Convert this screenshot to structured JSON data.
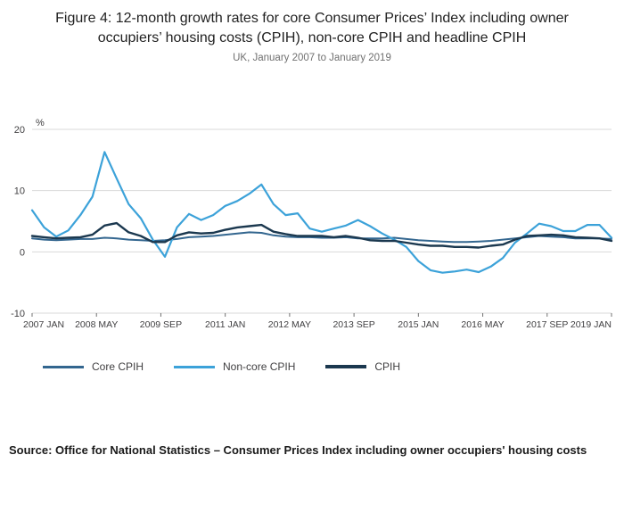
{
  "figure": {
    "title": "Figure 4: 12-month growth rates for core Consumer Prices’ Index including owner occupiers’ housing costs (CPIH), non-core CPIH and headline CPIH",
    "subtitle": "UK, January 2007 to January 2019",
    "source": "Source: Office for National Statistics – Consumer Prices Index including owner occupiers' housing costs"
  },
  "chart_data": {
    "type": "line",
    "title": "Figure 4: 12-month growth rates for core Consumer Prices’ Index including owner occupiers’ housing costs (CPIH), non-core CPIH and headline CPIH",
    "subtitle": "UK, January 2007 to January 2019",
    "xlabel": "",
    "ylabel": "%",
    "ylim": [
      -10,
      20
    ],
    "yticks": [
      20,
      10,
      0,
      -10
    ],
    "grid": "horizontal",
    "legend_position": "bottom",
    "total_months": 144,
    "x_tick_months": [
      0,
      16,
      32,
      48,
      64,
      80,
      96,
      112,
      128,
      144
    ],
    "x_tick_labels": [
      "2007 JAN",
      "2008 MAY",
      "2009 SEP",
      "2011 JAN",
      "2012 MAY",
      "2013 SEP",
      "2015 JAN",
      "2016 MAY",
      "2017 SEP",
      "2019 JAN"
    ],
    "x": [
      "2007 JAN",
      "2007 APR",
      "2007 JUL",
      "2007 OCT",
      "2008 JAN",
      "2008 APR",
      "2008 JUL",
      "2008 OCT",
      "2009 JAN",
      "2009 APR",
      "2009 JUL",
      "2009 OCT",
      "2010 JAN",
      "2010 APR",
      "2010 JUL",
      "2010 OCT",
      "2011 JAN",
      "2011 APR",
      "2011 JUL",
      "2011 OCT",
      "2012 JAN",
      "2012 APR",
      "2012 JUL",
      "2012 OCT",
      "2013 JAN",
      "2013 APR",
      "2013 JUL",
      "2013 OCT",
      "2014 JAN",
      "2014 APR",
      "2014 JUL",
      "2014 OCT",
      "2015 JAN",
      "2015 APR",
      "2015 JUL",
      "2015 OCT",
      "2016 JAN",
      "2016 APR",
      "2016 JUL",
      "2016 OCT",
      "2017 JAN",
      "2017 APR",
      "2017 JUL",
      "2017 OCT",
      "2018 JAN",
      "2018 APR",
      "2018 JUL",
      "2018 OCT",
      "2019 JAN"
    ],
    "series": [
      {
        "name": "Core CPIH",
        "color": "#33668f",
        "values": [
          2.2,
          2.0,
          1.9,
          2.0,
          2.1,
          2.1,
          2.3,
          2.2,
          2.0,
          1.9,
          1.8,
          1.9,
          2.1,
          2.4,
          2.5,
          2.6,
          2.8,
          3.0,
          3.2,
          3.1,
          2.7,
          2.5,
          2.4,
          2.4,
          2.3,
          2.3,
          2.4,
          2.2,
          2.2,
          2.2,
          2.3,
          2.1,
          1.9,
          1.8,
          1.7,
          1.6,
          1.6,
          1.7,
          1.8,
          2.0,
          2.2,
          2.4,
          2.6,
          2.5,
          2.4,
          2.2,
          2.2,
          2.2,
          2.1
        ]
      },
      {
        "name": "Non-core CPIH",
        "color": "#3ca2d9",
        "values": [
          6.8,
          4.0,
          2.5,
          3.5,
          6.0,
          9.0,
          16.3,
          12.0,
          7.8,
          5.5,
          2.0,
          -0.8,
          4.0,
          6.2,
          5.2,
          6.0,
          7.5,
          8.3,
          9.5,
          11.0,
          7.8,
          6.0,
          6.3,
          3.8,
          3.3,
          3.8,
          4.3,
          5.2,
          4.2,
          3.0,
          2.0,
          0.8,
          -1.5,
          -3.0,
          -3.4,
          -3.2,
          -2.9,
          -3.3,
          -2.4,
          -1.0,
          1.5,
          3.0,
          4.6,
          4.2,
          3.4,
          3.4,
          4.4,
          4.4,
          2.3
        ]
      },
      {
        "name": "CPIH",
        "color": "#1b384f",
        "values": [
          2.6,
          2.4,
          2.2,
          2.3,
          2.4,
          2.8,
          4.3,
          4.7,
          3.2,
          2.6,
          1.6,
          1.6,
          2.7,
          3.2,
          3.0,
          3.1,
          3.6,
          4.0,
          4.2,
          4.4,
          3.3,
          2.9,
          2.6,
          2.6,
          2.6,
          2.4,
          2.6,
          2.3,
          1.9,
          1.8,
          1.8,
          1.5,
          1.2,
          1.0,
          1.0,
          0.8,
          0.8,
          0.7,
          1.0,
          1.2,
          2.0,
          2.6,
          2.7,
          2.8,
          2.7,
          2.4,
          2.3,
          2.2,
          1.8
        ]
      }
    ]
  }
}
